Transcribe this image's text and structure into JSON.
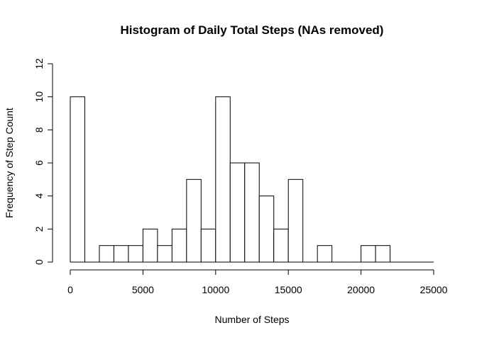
{
  "chart_data": {
    "type": "bar",
    "title": "Histogram of Daily Total Steps (NAs removed)",
    "xlabel": "Number of Steps",
    "ylabel": "Frequency of Step Count",
    "bin_width": 1000,
    "bins": [
      {
        "start": 0,
        "end": 1000,
        "count": 10
      },
      {
        "start": 1000,
        "end": 2000,
        "count": 0
      },
      {
        "start": 2000,
        "end": 3000,
        "count": 1
      },
      {
        "start": 3000,
        "end": 4000,
        "count": 1
      },
      {
        "start": 4000,
        "end": 5000,
        "count": 1
      },
      {
        "start": 5000,
        "end": 6000,
        "count": 2
      },
      {
        "start": 6000,
        "end": 7000,
        "count": 1
      },
      {
        "start": 7000,
        "end": 8000,
        "count": 2
      },
      {
        "start": 8000,
        "end": 9000,
        "count": 5
      },
      {
        "start": 9000,
        "end": 10000,
        "count": 2
      },
      {
        "start": 10000,
        "end": 11000,
        "count": 10
      },
      {
        "start": 11000,
        "end": 12000,
        "count": 6
      },
      {
        "start": 12000,
        "end": 13000,
        "count": 6
      },
      {
        "start": 13000,
        "end": 14000,
        "count": 4
      },
      {
        "start": 14000,
        "end": 15000,
        "count": 2
      },
      {
        "start": 15000,
        "end": 16000,
        "count": 5
      },
      {
        "start": 16000,
        "end": 17000,
        "count": 0
      },
      {
        "start": 17000,
        "end": 18000,
        "count": 1
      },
      {
        "start": 18000,
        "end": 19000,
        "count": 0
      },
      {
        "start": 19000,
        "end": 20000,
        "count": 0
      },
      {
        "start": 20000,
        "end": 21000,
        "count": 1
      },
      {
        "start": 21000,
        "end": 22000,
        "count": 1
      },
      {
        "start": 22000,
        "end": 23000,
        "count": 0
      },
      {
        "start": 23000,
        "end": 24000,
        "count": 0
      },
      {
        "start": 24000,
        "end": 25000,
        "count": 0
      }
    ],
    "xlim": [
      0,
      25000
    ],
    "ylim": [
      0,
      12
    ],
    "x_ticks": [
      "0",
      "5000",
      "10000",
      "15000",
      "20000",
      "25000"
    ],
    "y_ticks": [
      "0",
      "2",
      "4",
      "6",
      "8",
      "10",
      "12"
    ],
    "grid": false,
    "colors": {
      "bar_fill": "#ffffff",
      "bar_stroke": "#000000"
    }
  }
}
